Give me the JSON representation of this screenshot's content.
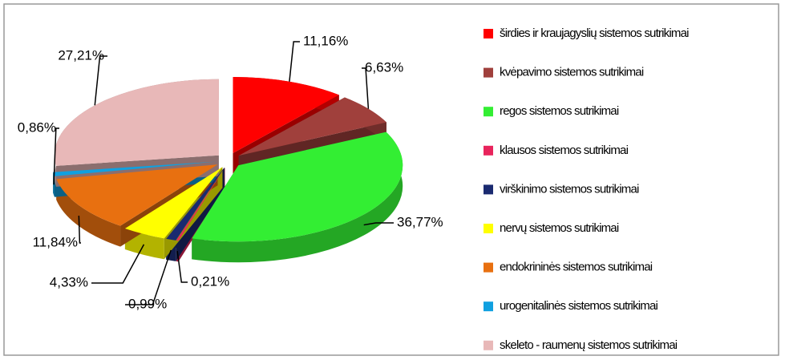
{
  "chart_data": {
    "type": "pie",
    "categories": [
      "širdies ir kraujagyslių sistemos sutrikimai",
      "kvėpavimo sistemos sutrikimai",
      "regos sistemos sutrikimai",
      "klausos sistemos sutrikimai",
      "virškinimo sistemos sutrikimai",
      "nervų sistemos sutrikimai",
      "endokrininės sistemos sutrikimai",
      "urogenitalinės sistemos sutrikimai",
      "skeleto - raumenų sistemos sutrikimai"
    ],
    "values": [
      11.16,
      6.63,
      36.77,
      0.21,
      0.99,
      4.33,
      11.84,
      0.86,
      27.21
    ],
    "value_labels": [
      "11,16%",
      "6,63%",
      "36,77%",
      "0,21%",
      "0,99%",
      "4,33%",
      "11,84%",
      "0,86%",
      "27,21%"
    ],
    "colors": [
      "#ff0000",
      "#a0403c",
      "#33ee33",
      "#e8245c",
      "#1a2a70",
      "#ffff00",
      "#e87010",
      "#10a0e0",
      "#e8b8b8"
    ],
    "legend": "right"
  }
}
